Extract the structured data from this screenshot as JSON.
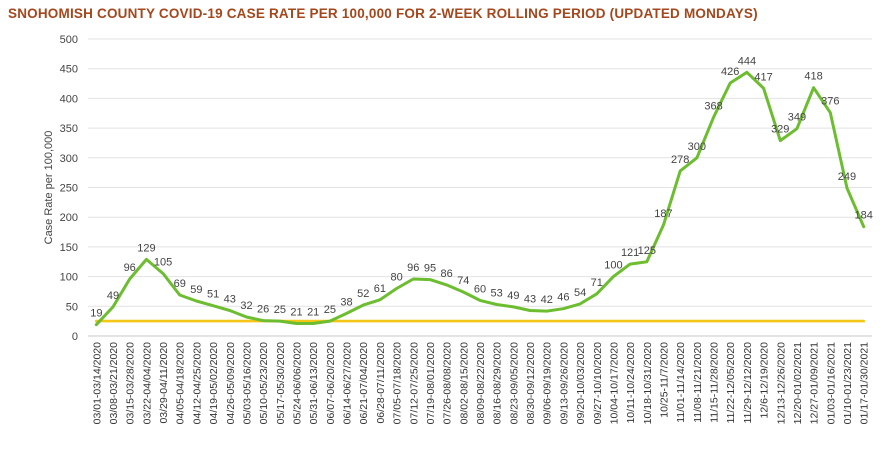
{
  "chart_data": {
    "type": "line",
    "title": "SNOHOMISH COUNTY COVID-19 CASE RATE PER 100,000 FOR 2-WEEK ROLLING PERIOD (UPDATED MONDAYS)",
    "xlabel": "",
    "ylabel": "Case Rate per 100,000",
    "ylim": [
      0,
      500
    ],
    "yticks": [
      0,
      50,
      100,
      150,
      200,
      250,
      300,
      350,
      400,
      450,
      500
    ],
    "grid": true,
    "categories": [
      "03/01-03/14/2020",
      "03/08-03/21/2020",
      "03/15-03/28/2020",
      "03/22-04/04/2020",
      "03/29-04/11/2020",
      "04/05-04/18/2020",
      "04/12-04/25/2020",
      "04/19-05/02/2020",
      "04/26-05/09/2020",
      "05/03-05/16/2020",
      "05/10-05/23/2020",
      "05/17-05/30/2020",
      "05/24-06/06/2020",
      "05/31-06/13/2020",
      "06/07-06/20/2020",
      "06/14-06/27/2020",
      "06/21-07/04/2020",
      "06/28-07/11/2020",
      "07/05-07/18/2020",
      "07/12-07/25/2020",
      "07/19-08/01/2020",
      "07/26-08/08/2020",
      "08/02-08/15/2020",
      "08/09-08/22/2020",
      "08/16-08/29/2020",
      "08/23-09/05/2020",
      "08/30-09/12/2020",
      "09/06-09/19/2020",
      "09/13-09/26/2020",
      "09/20-10/03/2020",
      "09/27-10/10/2020",
      "10/04-10/17/2020",
      "10/11-10/24/2020",
      "10/18-10/31/2020",
      "10/25-11/7/2020",
      "11/01-11/14/2020",
      "11/08-11/21/2020",
      "11/15-11/28/2020",
      "11/22-12/05/2020",
      "11/29-12/12/2020",
      "12/6-12/19/2020",
      "12/13-12/26/2020",
      "12/20-01/02/2021",
      "12/27-01/09/2021",
      "01/03-01/16/2021",
      "01/10-01/23/2021",
      "01/17-01/30/2021"
    ],
    "series": [
      {
        "values": [
          19,
          49,
          96,
          129,
          105,
          69,
          59,
          51,
          43,
          32,
          26,
          25,
          21,
          21,
          25,
          38,
          52,
          61,
          80,
          96,
          95,
          86,
          74,
          60,
          53,
          49,
          43,
          42,
          46,
          54,
          71,
          100,
          121,
          125,
          187,
          278,
          300,
          368,
          426,
          444,
          417,
          329,
          349,
          418,
          376,
          249,
          184
        ],
        "color": "#6cbd2f"
      },
      {
        "values": [
          25,
          25,
          25,
          25,
          25,
          25,
          25,
          25,
          25,
          25,
          25,
          25,
          25,
          25,
          25,
          25,
          25,
          25,
          25,
          25,
          25,
          25,
          25,
          25,
          25,
          25,
          25,
          25,
          25,
          25,
          25,
          25,
          25,
          25,
          25,
          25,
          25,
          25,
          25,
          25,
          25,
          25,
          25,
          25,
          25,
          25,
          25
        ],
        "color": "#f5c518"
      }
    ],
    "data_labels": [
      "19",
      "49",
      "96",
      "129",
      "105",
      "69",
      "59",
      "51",
      "43",
      "32",
      "26",
      "25",
      "21",
      "21",
      "25",
      "38",
      "52",
      "61",
      "80",
      "96",
      "95",
      "86",
      "74",
      "60",
      "53",
      "49",
      "43",
      "42",
      "46",
      "54",
      "71",
      "100",
      "121",
      "125",
      "187",
      "278",
      "300",
      "368",
      "426",
      "444",
      "417",
      "329",
      "349",
      "418",
      "376",
      "249",
      "184"
    ]
  }
}
